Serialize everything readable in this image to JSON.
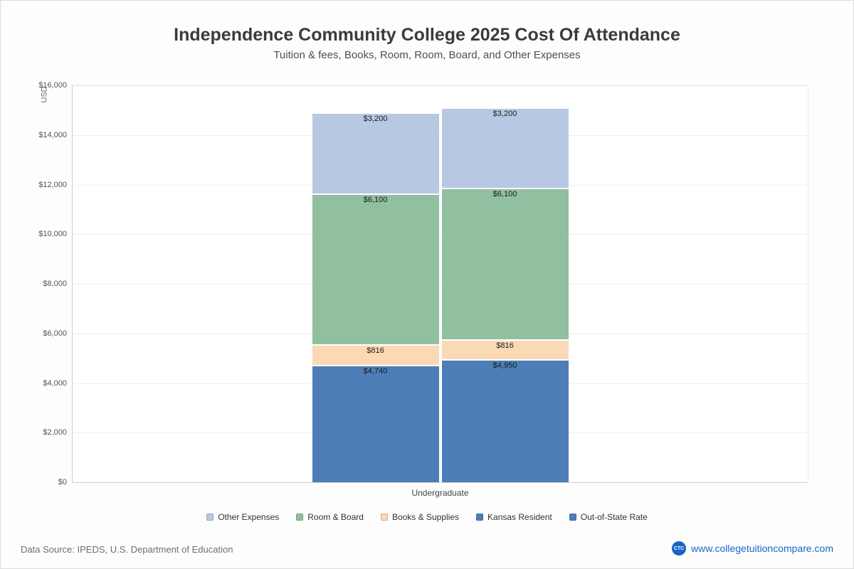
{
  "page": {
    "title": "Independence Community College 2025 Cost Of Attendance",
    "subtitle": "Tuition & fees, Books, Room, Room, Board, and Other Expenses",
    "data_source": "Data Source: IPEDS, U.S. Department of Education",
    "site_label": "www.collegetuitioncompare.com",
    "logo_text": "CTC"
  },
  "chart_data": {
    "type": "bar",
    "stacked": true,
    "title": "Independence Community College 2025 Cost Of Attendance",
    "subtitle": "Tuition & fees, Books, Room, Room, Board, and Other Expenses",
    "ylabel": "USD",
    "xlabel": "",
    "x_category_label": "Undergraduate",
    "ylim": [
      0,
      16000
    ],
    "grid": true,
    "legend_position": "bottom",
    "yticks": [
      {
        "value": 0,
        "label": "$0"
      },
      {
        "value": 2000,
        "label": "$2,000"
      },
      {
        "value": 4000,
        "label": "$4,000"
      },
      {
        "value": 6000,
        "label": "$6,000"
      },
      {
        "value": 8000,
        "label": "$8,000"
      },
      {
        "value": 10000,
        "label": "$10,000"
      },
      {
        "value": 12000,
        "label": "$12,000"
      },
      {
        "value": 14000,
        "label": "$14,000"
      },
      {
        "value": 16000,
        "label": "$16,000"
      }
    ],
    "bars": [
      {
        "name": "Kansas Resident",
        "segments": [
          {
            "series": "Kansas Resident",
            "value": 4740,
            "label": "$4,740",
            "color": "#4d7eb8"
          },
          {
            "series": "Books & Supplies",
            "value": 816,
            "label": "$816",
            "color": "#fbd9b5"
          },
          {
            "series": "Room & Board",
            "value": 6100,
            "label": "$6,100",
            "color": "#90c0a0"
          },
          {
            "series": "Other Expenses",
            "value": 3200,
            "label": "$3,200",
            "color": "#b7c8e2"
          }
        ]
      },
      {
        "name": "Out-of-State Rate",
        "segments": [
          {
            "series": "Out-of-State Rate",
            "value": 4950,
            "label": "$4,950",
            "color": "#4d7eb8"
          },
          {
            "series": "Books & Supplies",
            "value": 816,
            "label": "$816",
            "color": "#fbd9b5"
          },
          {
            "series": "Room & Board",
            "value": 6100,
            "label": "$6,100",
            "color": "#90c0a0"
          },
          {
            "series": "Other Expenses",
            "value": 3200,
            "label": "$3,200",
            "color": "#b7c8e2"
          }
        ]
      }
    ],
    "legend": [
      {
        "label": "Other Expenses",
        "color": "#b7c8e2"
      },
      {
        "label": "Room & Board",
        "color": "#90c0a0"
      },
      {
        "label": "Books & Supplies",
        "color": "#fbd9b5"
      },
      {
        "label": "Kansas Resident",
        "color": "#4d7eb8"
      },
      {
        "label": "Out-of-State Rate",
        "color": "#4d7eb8"
      }
    ]
  }
}
